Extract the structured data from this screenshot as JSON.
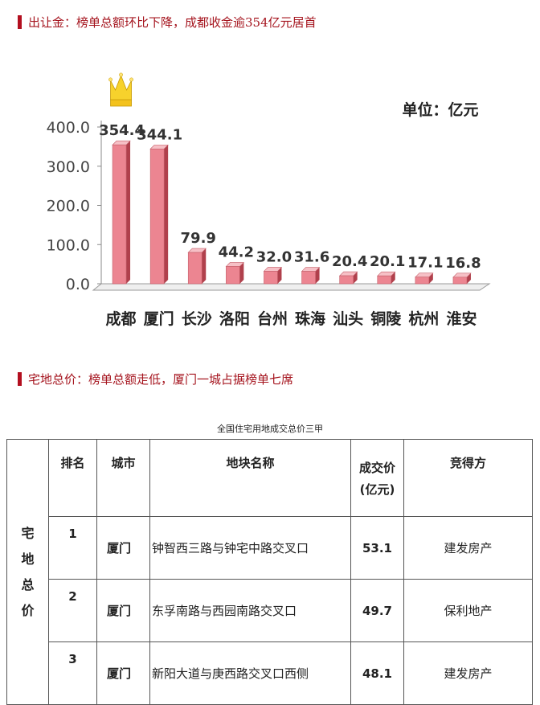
{
  "section1": {
    "heading": "出让金：榜单总额环比下降，成都收金逾354亿元居首"
  },
  "section2": {
    "heading": "宅地总价：榜单总额走低，厦门一城占据榜单七席"
  },
  "chart_data": {
    "type": "bar",
    "title": "",
    "unit_label": "单位：亿元",
    "categories": [
      "成都",
      "厦门",
      "长沙",
      "洛阳",
      "台州",
      "珠海",
      "汕头",
      "铜陵",
      "杭州",
      "淮安"
    ],
    "values": [
      354.4,
      344.1,
      79.9,
      44.2,
      32.0,
      31.6,
      20.4,
      20.1,
      17.1,
      16.8
    ],
    "value_labels": [
      "354.4",
      "344.1",
      "79.9",
      "44.2",
      "32.0",
      "31.6",
      "20.4",
      "20.1",
      "17.1",
      "16.8"
    ],
    "yticks": [
      "0.0",
      "100.0",
      "200.0",
      "300.0",
      "400.0"
    ],
    "ylim": [
      0,
      400
    ],
    "grid": false,
    "bar_color": "#ec8591",
    "bar_side_color": "#b0404c",
    "crown_on_first": true
  },
  "table": {
    "title": "全国住宅用地成交总价三甲",
    "side_label": [
      "宅",
      "地",
      "总",
      "价"
    ],
    "headers": {
      "rank": "排名",
      "city": "城市",
      "plot": "地块名称",
      "price_line1": "成交价",
      "price_line2": "(亿元)",
      "winner": "竞得方"
    },
    "rows": [
      {
        "rank": "1",
        "city": "厦门",
        "plot": "钟智西三路与钟宅中路交叉口",
        "price": "53.1",
        "winner": "建发房产"
      },
      {
        "rank": "2",
        "city": "厦门",
        "plot": "东孚南路与西园南路交叉口",
        "price": "49.7",
        "winner": "保利地产"
      },
      {
        "rank": "3",
        "city": "厦门",
        "plot": "新阳大道与庚西路交叉口西侧",
        "price": "48.1",
        "winner": "建发房产"
      }
    ]
  }
}
